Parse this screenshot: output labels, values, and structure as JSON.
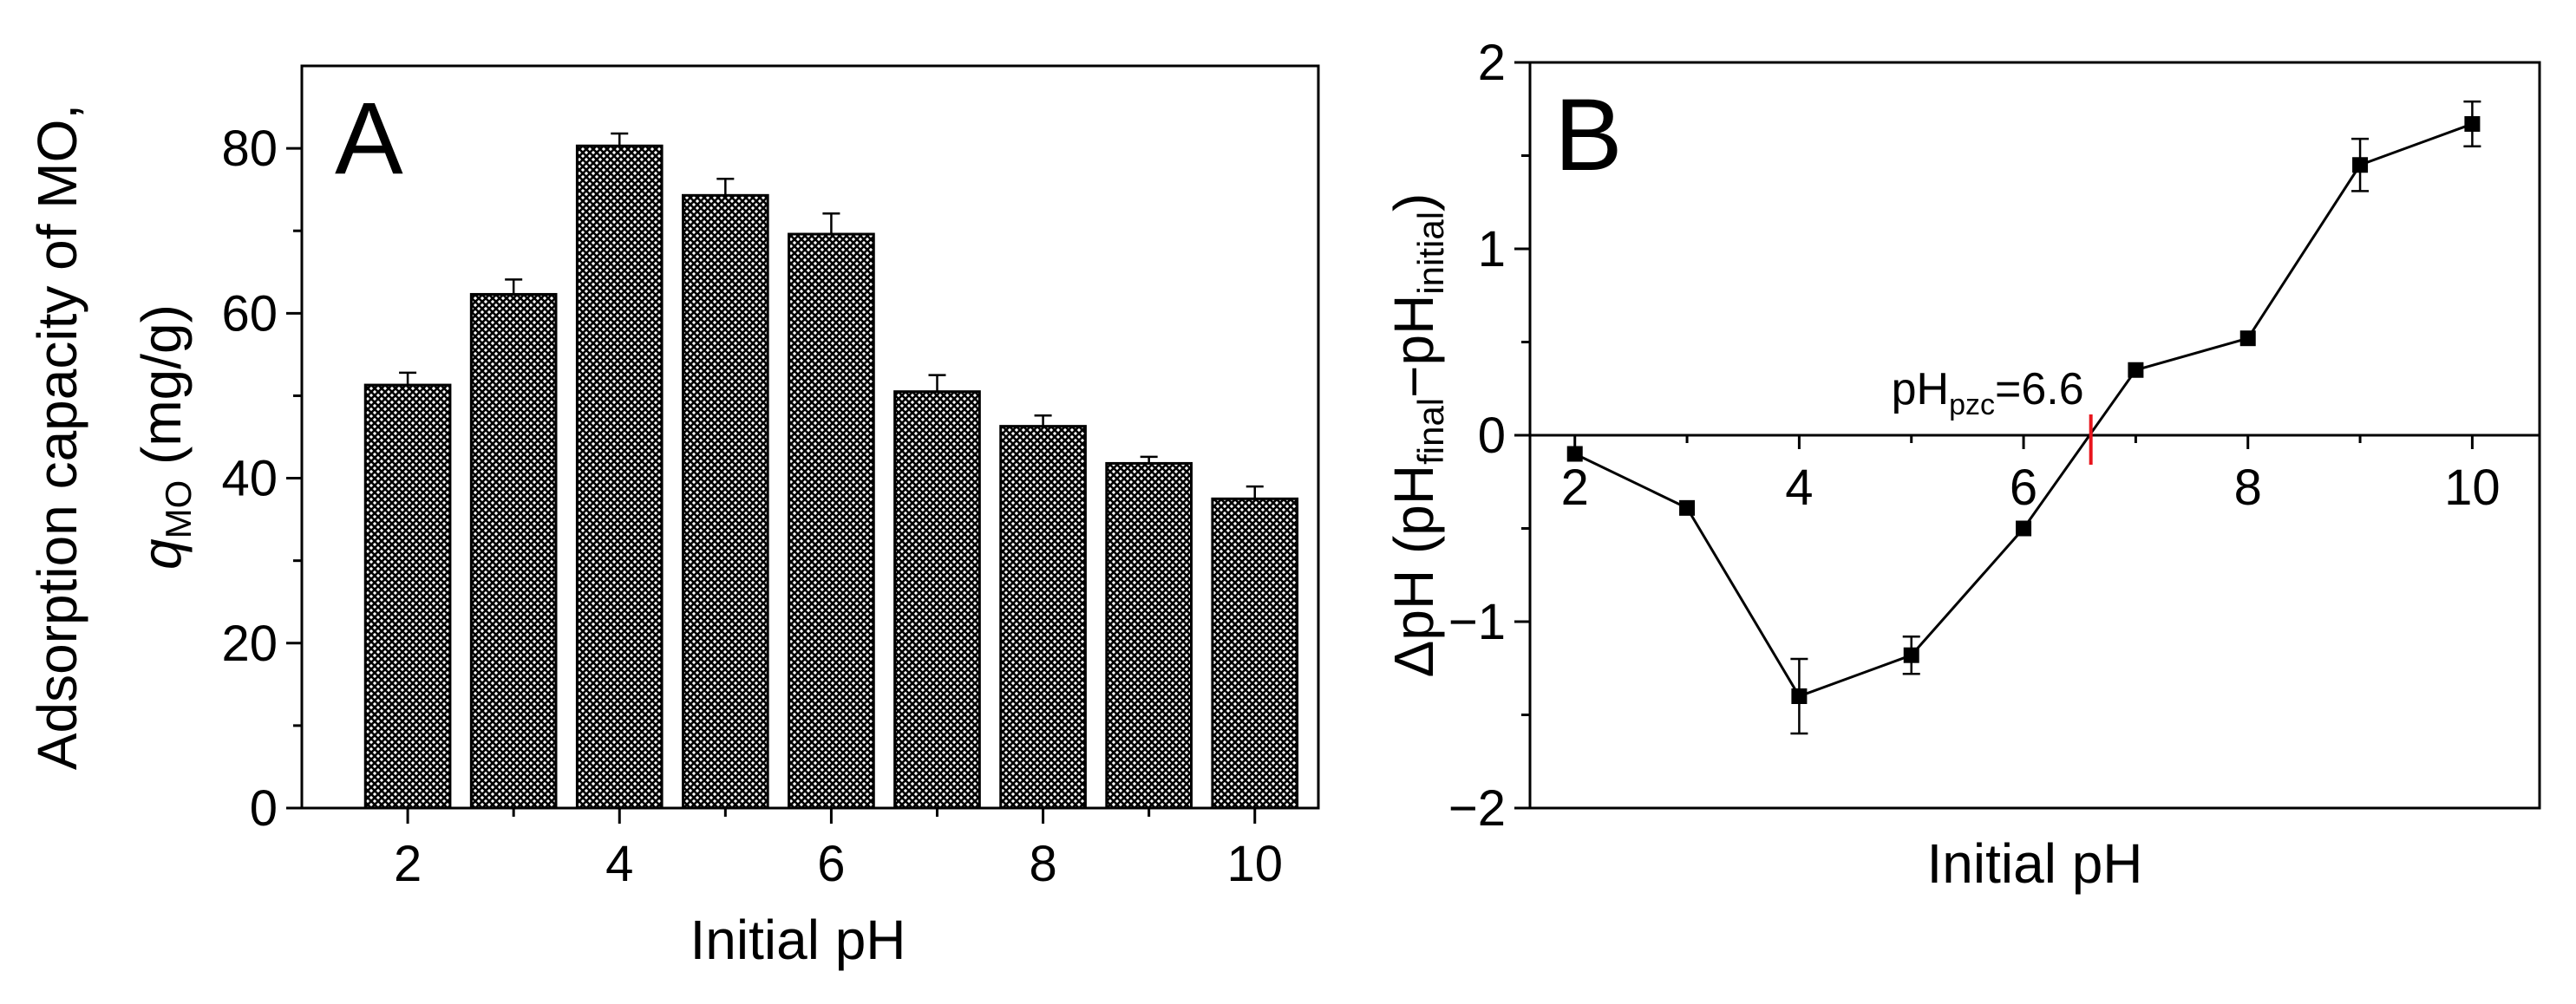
{
  "chart_data": [
    {
      "panel_label": "A",
      "type": "bar",
      "xlabel": "Initial pH",
      "ylabel_line1": "Adsorption capacity of MO,",
      "ylabel_line2": {
        "symbol": "q",
        "subscript": "MO",
        "units": " (mg/g)"
      },
      "x": [
        2,
        3,
        4,
        5,
        6,
        7,
        8,
        9,
        10
      ],
      "values": [
        51.3,
        62.3,
        80.3,
        74.3,
        69.6,
        50.5,
        46.3,
        41.8,
        37.5
      ],
      "errors": [
        1.5,
        1.8,
        1.5,
        2.0,
        2.5,
        2.0,
        1.3,
        0.8,
        1.5
      ],
      "xlim": [
        1,
        10.6
      ],
      "ylim": [
        0,
        90
      ],
      "xticks": [
        "2",
        "4",
        "6",
        "8",
        "10"
      ],
      "yticks": [
        "0",
        "20",
        "40",
        "60",
        "80"
      ],
      "fill": "crosshatch"
    },
    {
      "panel_label": "B",
      "type": "line",
      "xlabel": "Initial pH",
      "ylabel": {
        "prefix": "ΔpH (pH",
        "sub1": "final",
        "mid": "−pH",
        "sub2": "initial",
        "suffix": ")"
      },
      "x": [
        2,
        3,
        4,
        5,
        6,
        7,
        8,
        9,
        10
      ],
      "y": [
        -0.1,
        -0.39,
        -1.4,
        -1.18,
        -0.5,
        0.35,
        0.52,
        1.45,
        1.67
      ],
      "errors": [
        0,
        0,
        0.2,
        0.1,
        0,
        0,
        0,
        0.14,
        0.12
      ],
      "xlim": [
        1.6,
        10.6
      ],
      "ylim": [
        -2,
        2
      ],
      "xticks": [
        "2",
        "4",
        "6",
        "8",
        "10"
      ],
      "yticks": [
        "−2",
        "−1",
        "0",
        "1",
        "2"
      ],
      "annotation": {
        "text_main": "pH",
        "text_sub": "pzc",
        "text_value": "=6.6",
        "x": 6.6,
        "color": "#e8141c"
      }
    }
  ]
}
